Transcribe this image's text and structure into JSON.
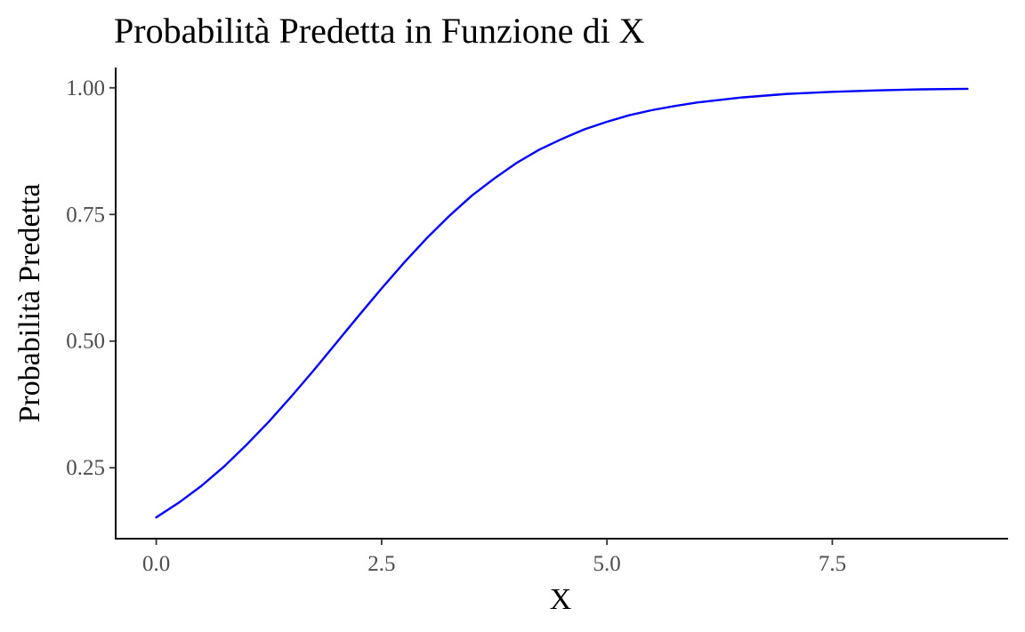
{
  "chart_data": {
    "type": "line",
    "title": "Probabilità Predetta in Funzione di X",
    "xlabel": "X",
    "ylabel": "Probabilità Predetta",
    "xlim": [
      -0.45,
      9.45
    ],
    "ylim": [
      0.11,
      1.04
    ],
    "x_ticks": [
      0.0,
      2.5,
      5.0,
      7.5
    ],
    "x_tick_labels": [
      "0.0",
      "2.5",
      "5.0",
      "7.5"
    ],
    "y_ticks": [
      0.25,
      0.5,
      0.75,
      1.0
    ],
    "y_tick_labels": [
      "0.25",
      "0.50",
      "0.75",
      "1.00"
    ],
    "grid": false,
    "legend": "none",
    "series": [
      {
        "color": "#0000ff",
        "x": [
          0.0,
          0.25,
          0.5,
          0.75,
          1.0,
          1.25,
          1.5,
          1.75,
          2.0,
          2.25,
          2.5,
          2.75,
          3.0,
          3.25,
          3.5,
          3.75,
          4.0,
          4.25,
          4.5,
          4.75,
          5.0,
          5.25,
          5.5,
          5.75,
          6.0,
          6.5,
          7.0,
          7.5,
          8.0,
          8.5,
          9.0
        ],
        "y": [
          0.152,
          0.181,
          0.214,
          0.252,
          0.295,
          0.341,
          0.391,
          0.443,
          0.497,
          0.551,
          0.604,
          0.655,
          0.703,
          0.747,
          0.787,
          0.821,
          0.852,
          0.878,
          0.899,
          0.918,
          0.933,
          0.946,
          0.956,
          0.964,
          0.971,
          0.981,
          0.988,
          0.992,
          0.995,
          0.997,
          0.998
        ]
      }
    ]
  }
}
